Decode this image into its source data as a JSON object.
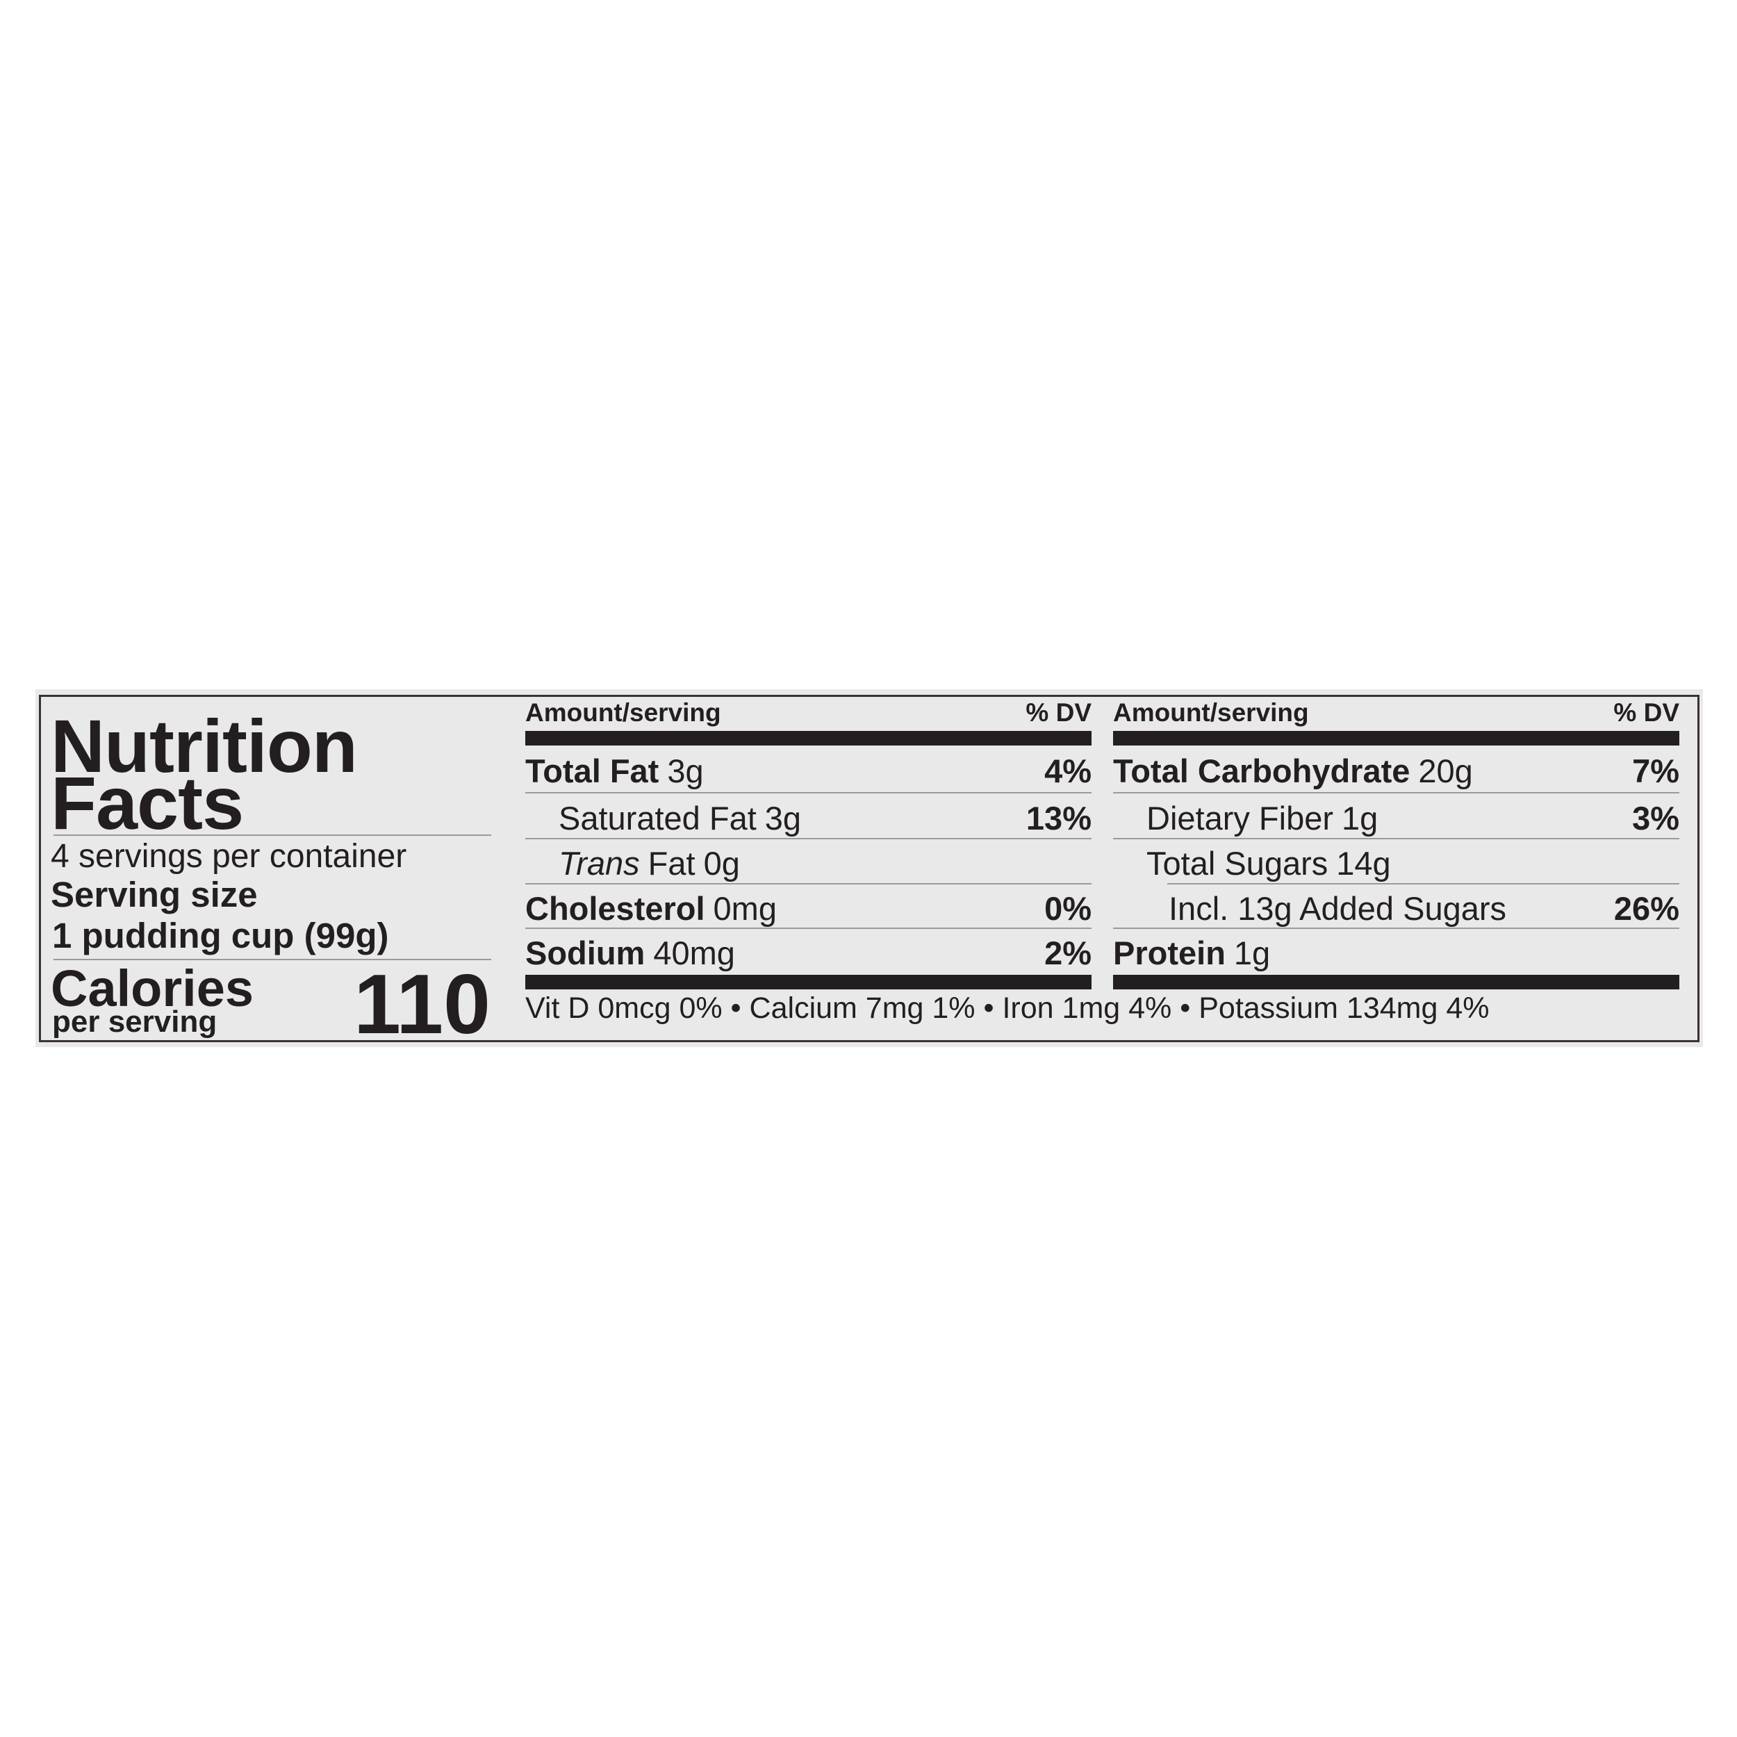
{
  "label": {
    "title_line1": "Nutrition",
    "title_line2": "Facts",
    "servings_per_container": "4 servings per container",
    "serving_size_label": "Serving size",
    "serving_size_value": "1 pudding cup (99g)",
    "calories_label": "Calories",
    "calories_sub": "per serving",
    "calories_value": "110",
    "amount_header": "Amount/serving",
    "dv_header": "% DV",
    "left_rows": [
      {
        "name": "Total Fat",
        "amount": "3g",
        "dv": "4%"
      },
      {
        "name": "Saturated Fat",
        "amount": "3g",
        "dv": "13%"
      },
      {
        "name": "Trans",
        "name_suffix": "Fat",
        "amount": "0g",
        "dv": ""
      },
      {
        "name": "Cholesterol",
        "amount": "0mg",
        "dv": "0%"
      },
      {
        "name": "Sodium",
        "amount": "40mg",
        "dv": "2%"
      }
    ],
    "right_rows": [
      {
        "name": "Total Carbohydrate",
        "amount": "20g",
        "dv": "7%"
      },
      {
        "name": "Dietary Fiber",
        "amount": "1g",
        "dv": "3%"
      },
      {
        "name": "Total Sugars",
        "amount": "14g",
        "dv": ""
      },
      {
        "name": "Incl. 13g Added Sugars",
        "amount": "",
        "dv": "26%"
      },
      {
        "name": "Protein",
        "amount": "1g",
        "dv": ""
      }
    ],
    "footer": "Vit D 0mcg 0% • Calcium 7mg 1% • Iron 1mg 4% • Potassium 134mg 4%"
  }
}
